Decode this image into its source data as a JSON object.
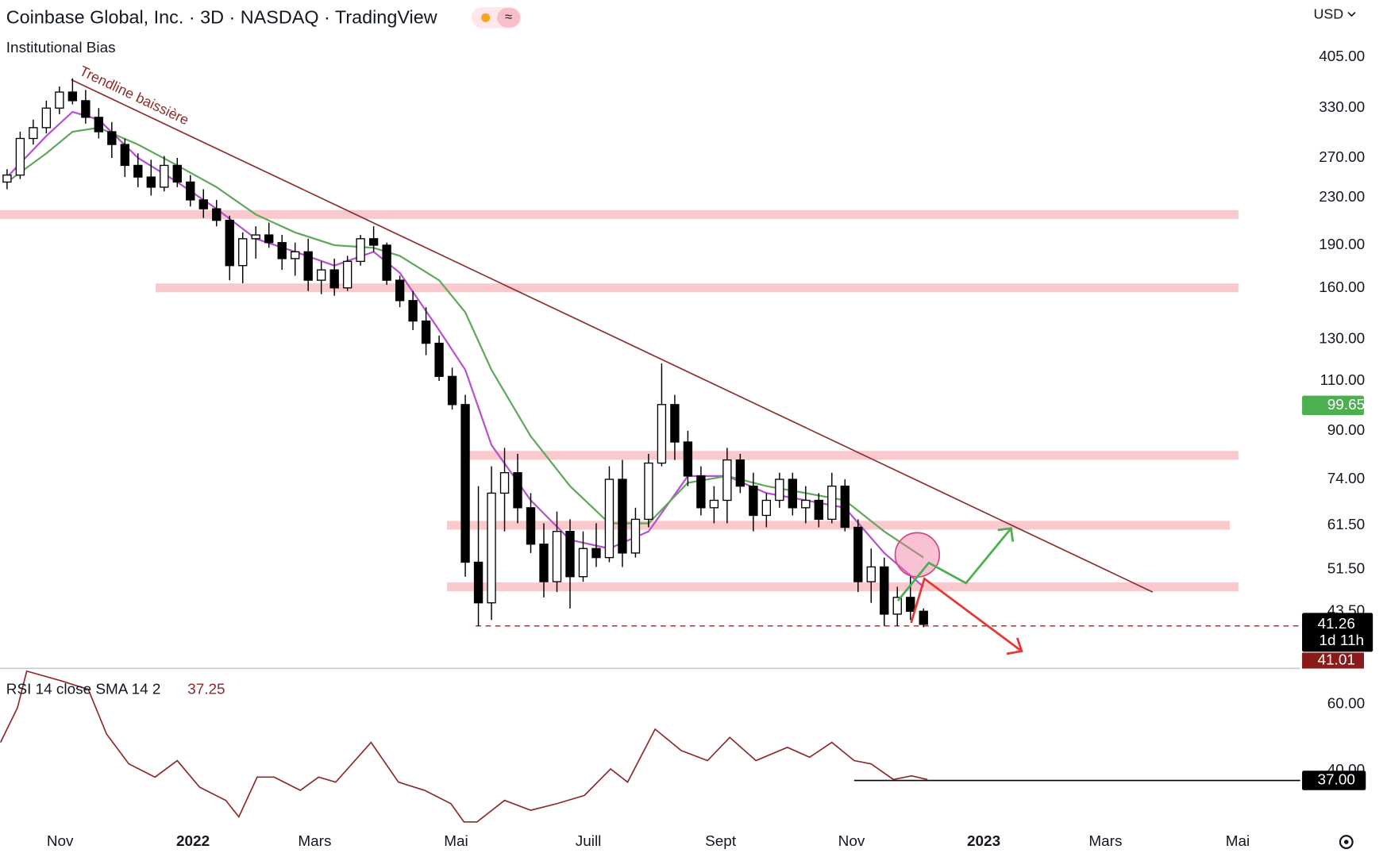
{
  "chart_data": [
    {
      "type": "candlestick",
      "title": "Coinbase Global, Inc. · 3D · NASDAQ · TradingView",
      "subtitle": "Institutional Bias",
      "currency": "USD",
      "log": true,
      "grid": false,
      "ylim": [
        34.5,
        510
      ],
      "yticks": [
        {
          "value": 405,
          "label": "405.00"
        },
        {
          "value": 330,
          "label": "330.00"
        },
        {
          "value": 270,
          "label": "270.00"
        },
        {
          "value": 230,
          "label": "230.00"
        },
        {
          "value": 190,
          "label": "190.00"
        },
        {
          "value": 160,
          "label": "160.00"
        },
        {
          "value": 130,
          "label": "130.00"
        },
        {
          "value": 110,
          "label": "110.00"
        },
        {
          "value": 90,
          "label": "90.00"
        },
        {
          "value": 74,
          "label": "74.00"
        },
        {
          "value": 61.5,
          "label": "61.50"
        },
        {
          "value": 51.5,
          "label": "51.50"
        },
        {
          "value": 43.5,
          "label": "43.50"
        }
      ],
      "xlim": [
        -0.54,
        98.78
      ],
      "xticks": [
        {
          "value": 4.05,
          "label": "Nov"
        },
        {
          "value": 14.2,
          "label": "2022"
        },
        {
          "value": 23.5,
          "label": "Mars"
        },
        {
          "value": 34.3,
          "label": "Mai"
        },
        {
          "value": 44.4,
          "label": "Juill"
        },
        {
          "value": 54.5,
          "label": "Sept"
        },
        {
          "value": 64.5,
          "label": "Nov"
        },
        {
          "value": 74.6,
          "label": "2023"
        },
        {
          "value": 83.9,
          "label": "Mars"
        },
        {
          "value": 94,
          "label": "Mai"
        }
      ],
      "x": [
        0,
        1,
        2,
        3,
        4,
        5,
        6,
        7,
        8,
        9,
        10,
        11,
        12,
        13,
        14,
        15,
        16,
        17,
        18,
        19,
        20,
        21,
        22,
        23,
        24,
        25,
        26,
        27,
        28,
        29,
        30,
        31,
        32,
        33,
        34,
        35,
        36,
        37,
        38,
        39,
        40,
        41,
        42,
        43,
        44,
        45,
        46,
        47,
        48,
        49,
        50,
        51,
        52,
        53,
        54,
        55,
        56,
        57,
        58,
        59,
        60,
        61,
        62,
        63,
        64,
        65,
        66,
        67,
        68,
        69,
        70
      ],
      "open": [
        245,
        252,
        292,
        305,
        330,
        352,
        340,
        318,
        300,
        285,
        262,
        250,
        240,
        262,
        245,
        228,
        220,
        210,
        175,
        195,
        198,
        192,
        180,
        185,
        165,
        172,
        160,
        178,
        195,
        190,
        165,
        152,
        140,
        128,
        112,
        100,
        53,
        45,
        70,
        76,
        66,
        57,
        49,
        60,
        50,
        56,
        54,
        74,
        55,
        63,
        79,
        100,
        86,
        75,
        66,
        68,
        80,
        72,
        64,
        68,
        74,
        66,
        68,
        63,
        72,
        61,
        49,
        52,
        43,
        46,
        43.5
      ],
      "high": [
        258,
        300,
        315,
        340,
        360,
        372,
        355,
        330,
        312,
        292,
        275,
        268,
        272,
        270,
        252,
        238,
        228,
        214,
        200,
        205,
        208,
        198,
        192,
        195,
        178,
        180,
        182,
        198,
        205,
        192,
        168,
        158,
        148,
        132,
        116,
        104,
        72,
        78,
        84,
        82,
        70,
        62,
        65,
        63,
        60,
        62,
        78,
        80,
        66,
        82,
        118,
        104,
        90,
        78,
        72,
        84,
        82,
        76,
        70,
        76,
        76,
        72,
        70,
        76,
        74,
        63,
        56,
        54,
        48,
        50,
        44
      ],
      "low": [
        238,
        248,
        285,
        298,
        322,
        335,
        310,
        292,
        270,
        250,
        240,
        232,
        236,
        240,
        222,
        212,
        205,
        165,
        163,
        180,
        188,
        172,
        168,
        158,
        156,
        155,
        158,
        175,
        185,
        162,
        148,
        135,
        122,
        110,
        98,
        50,
        41,
        42,
        60,
        62,
        55,
        46,
        47,
        44,
        49,
        52,
        53,
        52,
        54,
        61,
        78,
        80,
        72,
        64,
        62,
        62,
        70,
        60,
        61,
        66,
        64,
        62,
        61,
        62,
        60,
        47,
        45,
        41,
        41,
        42,
        40.8
      ],
      "close": [
        252,
        292,
        305,
        330,
        352,
        340,
        318,
        300,
        285,
        262,
        250,
        240,
        262,
        245,
        228,
        220,
        210,
        175,
        195,
        198,
        192,
        180,
        185,
        165,
        172,
        160,
        178,
        195,
        190,
        165,
        152,
        140,
        128,
        112,
        100,
        53,
        45,
        70,
        76,
        66,
        57,
        49,
        60,
        50,
        56,
        54,
        74,
        55,
        63,
        79,
        100,
        86,
        75,
        66,
        68,
        80,
        72,
        64,
        68,
        74,
        66,
        68,
        63,
        72,
        61,
        49,
        52,
        43,
        46,
        43.5,
        41.26
      ],
      "series": [
        {
          "color": "#b452cf",
          "x": [
            0,
            3,
            5,
            7,
            10,
            13,
            16,
            19,
            22,
            25,
            28,
            30,
            33,
            35,
            37,
            40,
            43,
            46,
            49,
            52,
            55,
            58,
            61,
            64,
            67,
            70
          ],
          "values": [
            250,
            295,
            325,
            315,
            270,
            245,
            220,
            195,
            185,
            175,
            185,
            170,
            135,
            115,
            85,
            68,
            58,
            56,
            60,
            75,
            75,
            70,
            68,
            66,
            55,
            48
          ]
        },
        {
          "color": "#5fa85c",
          "x": [
            0,
            3,
            5,
            7,
            10,
            13,
            16,
            19,
            22,
            25,
            28,
            30,
            33,
            35,
            37,
            40,
            43,
            46,
            49,
            52,
            55,
            58,
            61,
            64,
            67,
            70
          ],
          "values": [
            245,
            275,
            300,
            305,
            285,
            262,
            240,
            215,
            200,
            190,
            188,
            182,
            165,
            145,
            115,
            88,
            72,
            62,
            62,
            73,
            75,
            72,
            70,
            68,
            60,
            54
          ]
        }
      ],
      "zones": [
        {
          "value": 215,
          "from": -0.54,
          "to": 94.05
        },
        {
          "value": 160,
          "from": 11.35,
          "to": 94.05
        },
        {
          "value": 81.5,
          "from": 35.3,
          "to": 94.05
        },
        {
          "value": 61.5,
          "from": 33.6,
          "to": 93.4
        },
        {
          "value": 48,
          "from": 33.6,
          "to": 94.05
        }
      ],
      "trendline": {
        "label": "Trendline baissière",
        "x": [
          4.9,
          87.5
        ],
        "values": [
          370,
          47
        ]
      },
      "dashed_line": {
        "value": 41,
        "from": 35.8
      },
      "marker_value": 99.65,
      "last_price": 41.26,
      "countdown": "1d 11h",
      "prev_price": 41.01
    },
    {
      "type": "line",
      "title": "RSI 14 close SMA 14 2",
      "last_value": 37.25,
      "color": "#8b2a2a",
      "ylim": [
        21.9,
        70.7
      ],
      "yticks": [
        {
          "value": 60,
          "label": "60.00"
        },
        {
          "value": 40,
          "label": "40.00"
        }
      ],
      "x": [
        -0.5,
        0.8,
        1.5,
        4.2,
        6.2,
        7.6,
        9.3,
        11.3,
        13,
        14.7,
        16.7,
        17.7,
        19.1,
        20.4,
        22.4,
        23.8,
        25.1,
        27.8,
        29.9,
        31.9,
        33.9,
        34.9,
        35.9,
        38,
        40,
        42,
        44.1,
        46.1,
        47.4,
        49.5,
        51.5,
        53.5,
        55.2,
        57.2,
        59.6,
        61.3,
        63,
        64.7,
        66,
        67.7,
        69.1,
        70.3
      ],
      "values": [
        48.5,
        59,
        70,
        67,
        64.5,
        51,
        42,
        38,
        43,
        35,
        31,
        26,
        38,
        38,
        34,
        38,
        36.5,
        48.5,
        36.5,
        34,
        30,
        24.5,
        24.5,
        31,
        28,
        30,
        32.5,
        40.5,
        36.5,
        52.5,
        46,
        43,
        50,
        43,
        47,
        44,
        48.5,
        43,
        42,
        37.3,
        38.4,
        37.25
      ],
      "level": {
        "value": 37,
        "label": "37.00",
        "from": 64.7
      }
    }
  ]
}
